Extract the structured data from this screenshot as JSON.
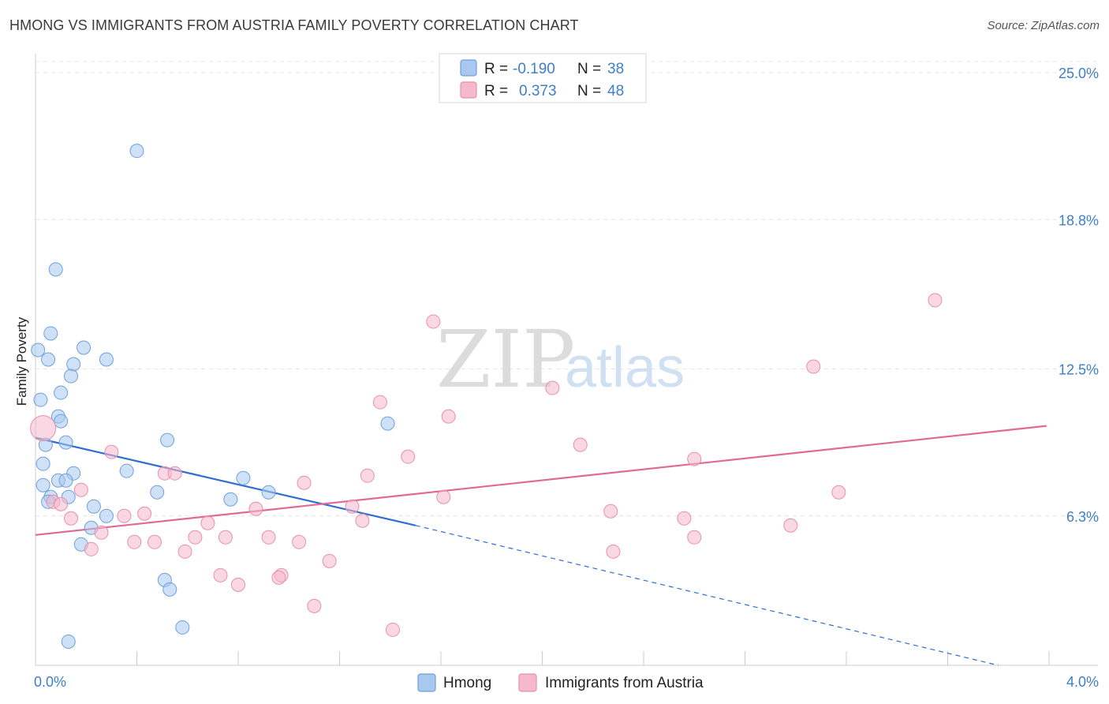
{
  "header": {
    "title": "HMONG VS IMMIGRANTS FROM AUSTRIA FAMILY POVERTY CORRELATION CHART",
    "source": "Source: ZipAtlas.com"
  },
  "watermark": {
    "zip": "ZIP",
    "atlas": "atlas"
  },
  "legend": {
    "r_label": "R =",
    "n_label": "N =",
    "rows": [
      {
        "r": "-0.190",
        "n": "38",
        "color": "#a8c8f0"
      },
      {
        "r": "0.373",
        "n": "48",
        "color": "#f6b8cc"
      }
    ]
  },
  "chart_data": {
    "type": "scatter",
    "title": "HMONG VS IMMIGRANTS FROM AUSTRIA FAMILY POVERTY CORRELATION CHART",
    "ylabel": "Family Poverty",
    "xlim": [
      0,
      4.0
    ],
    "ylim": [
      0,
      26
    ],
    "x_tick_labels": [
      "0.0%",
      "4.0%"
    ],
    "y_ticks": [
      6.3,
      12.5,
      18.8,
      25.0
    ],
    "y_tick_labels": [
      "6.3%",
      "12.5%",
      "18.8%",
      "25.0%"
    ],
    "grid": true,
    "legend_placement": "top-center",
    "series": [
      {
        "name": "Hmong",
        "color": "#a8c8f0",
        "stroke": "#6fa0dc",
        "trend": {
          "x0": 0.0,
          "y0": 9.6,
          "x1": 1.5,
          "y1": 5.9,
          "dash_x1": 3.8,
          "dash_y1": 0.0,
          "color": "#2f6fcf"
        },
        "points": [
          [
            0.4,
            21.7
          ],
          [
            0.08,
            16.7
          ],
          [
            0.06,
            14.0
          ],
          [
            0.01,
            13.3
          ],
          [
            0.19,
            13.4
          ],
          [
            0.28,
            12.9
          ],
          [
            0.05,
            12.9
          ],
          [
            0.15,
            12.7
          ],
          [
            0.14,
            12.2
          ],
          [
            0.1,
            11.5
          ],
          [
            0.02,
            11.2
          ],
          [
            0.09,
            10.5
          ],
          [
            0.1,
            10.3
          ],
          [
            1.39,
            10.2
          ],
          [
            0.52,
            9.5
          ],
          [
            0.04,
            9.3
          ],
          [
            0.12,
            9.4
          ],
          [
            0.03,
            8.5
          ],
          [
            0.36,
            8.2
          ],
          [
            0.15,
            8.1
          ],
          [
            0.09,
            7.8
          ],
          [
            0.12,
            7.8
          ],
          [
            0.82,
            7.9
          ],
          [
            0.03,
            7.6
          ],
          [
            0.48,
            7.3
          ],
          [
            0.92,
            7.3
          ],
          [
            0.06,
            7.1
          ],
          [
            0.13,
            7.1
          ],
          [
            0.77,
            7.0
          ],
          [
            0.05,
            6.9
          ],
          [
            0.23,
            6.7
          ],
          [
            0.28,
            6.3
          ],
          [
            0.22,
            5.8
          ],
          [
            0.18,
            5.1
          ],
          [
            0.51,
            3.6
          ],
          [
            0.53,
            3.2
          ],
          [
            0.58,
            1.6
          ],
          [
            0.13,
            1.0
          ]
        ]
      },
      {
        "name": "Immigrants from Austria",
        "color": "#f6b8cc",
        "stroke": "#e890ac",
        "trend": {
          "x0": 0.0,
          "y0": 5.5,
          "x1": 3.99,
          "y1": 10.1,
          "color": "#e06a95"
        },
        "points": [
          [
            3.55,
            15.4
          ],
          [
            1.57,
            14.5
          ],
          [
            3.07,
            12.6
          ],
          [
            2.04,
            11.7
          ],
          [
            1.36,
            11.1
          ],
          [
            1.63,
            10.5
          ],
          [
            0.03,
            10.0
          ],
          [
            2.15,
            9.3
          ],
          [
            0.3,
            9.0
          ],
          [
            1.47,
            8.8
          ],
          [
            2.6,
            8.7
          ],
          [
            0.51,
            8.1
          ],
          [
            0.55,
            8.1
          ],
          [
            1.31,
            8.0
          ],
          [
            1.06,
            7.7
          ],
          [
            0.18,
            7.4
          ],
          [
            3.17,
            7.3
          ],
          [
            1.61,
            7.1
          ],
          [
            0.07,
            6.9
          ],
          [
            0.1,
            6.8
          ],
          [
            1.25,
            6.7
          ],
          [
            0.87,
            6.6
          ],
          [
            2.27,
            6.5
          ],
          [
            0.43,
            6.4
          ],
          [
            0.35,
            6.3
          ],
          [
            2.56,
            6.2
          ],
          [
            0.14,
            6.2
          ],
          [
            1.29,
            6.1
          ],
          [
            0.68,
            6.0
          ],
          [
            2.98,
            5.9
          ],
          [
            0.26,
            5.6
          ],
          [
            0.63,
            5.4
          ],
          [
            0.75,
            5.4
          ],
          [
            0.92,
            5.4
          ],
          [
            2.6,
            5.4
          ],
          [
            0.39,
            5.2
          ],
          [
            0.47,
            5.2
          ],
          [
            1.04,
            5.2
          ],
          [
            0.22,
            4.9
          ],
          [
            0.59,
            4.8
          ],
          [
            2.28,
            4.8
          ],
          [
            1.16,
            4.4
          ],
          [
            0.73,
            3.8
          ],
          [
            0.97,
            3.8
          ],
          [
            0.96,
            3.7
          ],
          [
            0.8,
            3.4
          ],
          [
            1.1,
            2.5
          ],
          [
            1.41,
            1.5
          ]
        ]
      }
    ]
  }
}
